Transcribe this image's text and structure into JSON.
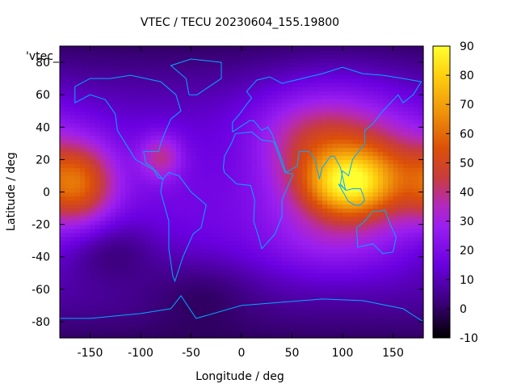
{
  "chart_data": {
    "type": "heatmap",
    "title": "VTEC / TECU 20230604_155.19800",
    "xlabel": "Longitude / deg",
    "ylabel": "Latitude / deg",
    "legend_label": "'vtec_",
    "xlim": [
      -180,
      180
    ],
    "ylim": [
      -90,
      90
    ],
    "x_ticks": [
      "-150",
      "-100",
      "-50",
      "0",
      "50",
      "100",
      "150"
    ],
    "y_ticks": [
      "-80",
      "-60",
      "-40",
      "-20",
      "0",
      "20",
      "40",
      "60",
      "80"
    ],
    "colorbar": {
      "range": [
        -10,
        90
      ],
      "ticks": [
        "-10",
        "0",
        "10",
        "20",
        "30",
        "40",
        "50",
        "60",
        "70",
        "80",
        "90"
      ]
    },
    "grid": false,
    "coastline_color": "#00aaff",
    "regions": [
      {
        "lon": 105,
        "lat": 5,
        "sig_lon": 30,
        "sig_lat": 14,
        "vtec": 48
      },
      {
        "lon": 95,
        "lat": 25,
        "sig_lon": 55,
        "sig_lat": 30,
        "vtec": 25
      },
      {
        "lon": 70,
        "lat": 35,
        "sig_lon": 40,
        "sig_lat": 18,
        "vtec": 10
      },
      {
        "lon": 150,
        "lat": 10,
        "sig_lon": 35,
        "sig_lat": 20,
        "vtec": 14
      },
      {
        "lon": 90,
        "lat": -30,
        "sig_lon": 45,
        "sig_lat": 15,
        "vtec": 10
      },
      {
        "lon": -160,
        "lat": 5,
        "sig_lon": 25,
        "sig_lat": 18,
        "vtec": 35
      },
      {
        "lon": -80,
        "lat": 22,
        "sig_lon": 15,
        "sig_lat": 10,
        "vtec": 22
      },
      {
        "lon": -130,
        "lat": -35,
        "sig_lon": 35,
        "sig_lat": 15,
        "vtec": -12
      },
      {
        "lon": -40,
        "lat": -60,
        "sig_lon": 40,
        "sig_lat": 15,
        "vtec": -8
      },
      {
        "lon": 0,
        "lat": 20,
        "sig_lon": 35,
        "sig_lat": 20,
        "vtec": -4
      }
    ]
  }
}
